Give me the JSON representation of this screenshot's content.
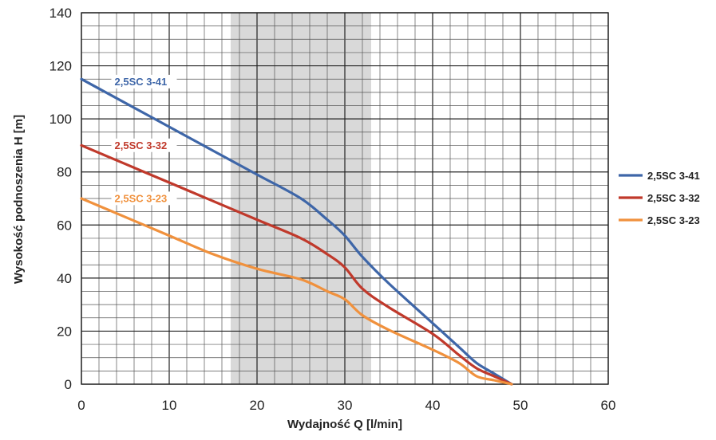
{
  "chart_data": {
    "type": "line",
    "title": "",
    "xlabel": "Wydajność Q [l/min]",
    "ylabel": "Wysokość podnoszenia H [m]",
    "xlim": [
      0,
      60
    ],
    "ylim": [
      0,
      140
    ],
    "x_ticks": [
      0,
      10,
      20,
      30,
      40,
      50,
      60
    ],
    "y_ticks": [
      0,
      20,
      40,
      60,
      80,
      100,
      120,
      140
    ],
    "x_ticks_labels": [
      "0",
      "10",
      "20",
      "30",
      "40",
      "50",
      "60"
    ],
    "y_ticks_labels": [
      "0",
      "20",
      "40",
      "60",
      "80",
      "100",
      "120",
      "140"
    ],
    "grid": true,
    "minor_grid": {
      "x_step": 2,
      "y_step": 5
    },
    "highlight_band": {
      "x_from": 17,
      "x_to": 33,
      "color": "#d9d9d9"
    },
    "legend": {
      "position": "right",
      "entries": [
        "2,5SC 3-41",
        "2,5SC 3-32",
        "2,5SC 3-23"
      ]
    },
    "series": [
      {
        "name": "2,5SC 3-41",
        "color": "#3e66a8",
        "label": "2,5SC 3-41",
        "label_x": 0.5,
        "label_y": 113,
        "x": [
          0,
          5,
          10,
          15,
          20,
          25,
          28,
          30,
          32,
          35,
          40,
          43,
          45,
          47,
          49
        ],
        "y": [
          115,
          106,
          97,
          88,
          79,
          70,
          62,
          56,
          48,
          38,
          23,
          14,
          8,
          4,
          0
        ]
      },
      {
        "name": "2,5SC 3-32",
        "color": "#c0392b",
        "label": "2,5SC 3-32",
        "label_x": 0.5,
        "label_y": 89,
        "x": [
          0,
          5,
          10,
          15,
          20,
          25,
          28,
          30,
          32,
          35,
          40,
          43,
          45,
          47,
          49
        ],
        "y": [
          90,
          83,
          76,
          69,
          62,
          55,
          49,
          44,
          36,
          29,
          19,
          11,
          6,
          3,
          0
        ]
      },
      {
        "name": "2,5SC 3-23",
        "color": "#f0913d",
        "label": "2,5SC 3-23",
        "label_x": 0.5,
        "label_y": 69,
        "x": [
          0,
          5,
          10,
          15,
          20,
          25,
          28,
          30,
          32,
          35,
          40,
          43,
          45,
          47,
          49
        ],
        "y": [
          70,
          63,
          56,
          49,
          43.5,
          39.5,
          35,
          32,
          26,
          20.5,
          13,
          8,
          3,
          1.5,
          0
        ]
      }
    ]
  }
}
